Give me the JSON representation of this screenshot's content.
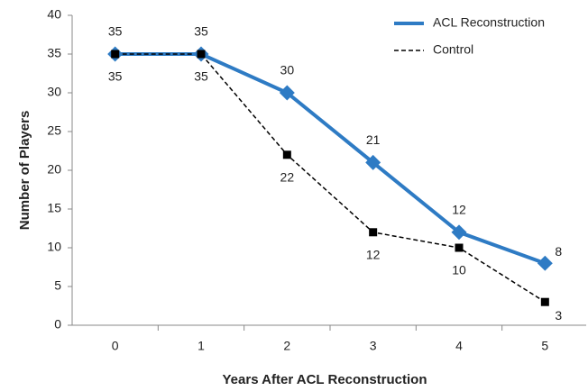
{
  "chart_data": {
    "type": "line",
    "x_label": "Years After ACL Reconstruction",
    "y_label": "Number of Players",
    "categories": [
      "0",
      "1",
      "2",
      "3",
      "4",
      "5"
    ],
    "series": [
      {
        "name": "ACL Reconstruction",
        "color": "#2e7bc4",
        "values": [
          35,
          35,
          30,
          21,
          12,
          8
        ]
      },
      {
        "name": "Control",
        "color": "#000000",
        "values": [
          35,
          35,
          22,
          12,
          10,
          3
        ]
      }
    ],
    "ylim": [
      0,
      40
    ],
    "yticks": [
      0,
      5,
      10,
      15,
      20,
      25,
      30,
      35,
      40
    ],
    "grid": false,
    "legend": "top-right"
  }
}
